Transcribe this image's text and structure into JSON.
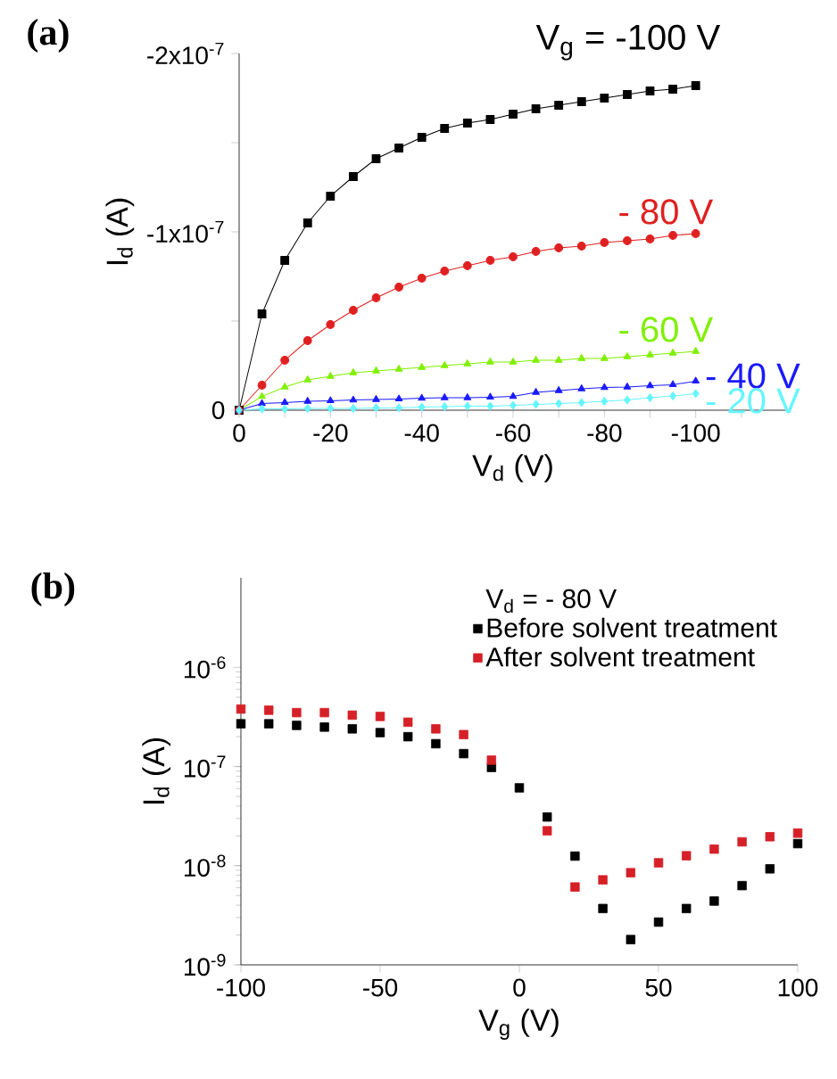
{
  "chart_data": [
    {
      "type": "line",
      "xlabel": "V$_{d}$ (V)",
      "ylabel": "I$_{d}$ (A)",
      "annotations": [
        "(a)"
      ],
      "x": [
        0,
        -5,
        -10,
        -15,
        -20,
        -25,
        -30,
        -35,
        -40,
        -45,
        -50,
        -55,
        -60,
        -65,
        -70,
        -75,
        -80,
        -85,
        -90,
        -95,
        -100
      ],
      "xlim": [
        0,
        -120
      ],
      "ylim": [
        0,
        -2e-07
      ],
      "xticks": [
        0,
        {
          "value": -10,
          "label": null
        },
        -20,
        {
          "value": -30,
          "label": null
        },
        -40,
        {
          "value": -50,
          "label": null
        },
        -60,
        {
          "value": -70,
          "label": null
        },
        -80,
        {
          "value": -90,
          "label": null
        },
        -100,
        {
          "value": -110,
          "label": null
        }
      ],
      "yticks": [
        0,
        {
          "value": -5e-08,
          "label": null
        },
        {
          "value": -1e-07,
          "label": "-1x10$^{-7}$"
        },
        {
          "value": -1.5e-07,
          "label": null
        },
        {
          "value": -2e-07,
          "label": "-2x10$^{-7}$"
        }
      ],
      "line_style": "solid",
      "series": [
        {
          "name": "V$_{g}$ = -100 V",
          "color": "#000000",
          "marker": "square",
          "values": [
            0,
            -5.4e-08,
            -8.4e-08,
            -1.05e-07,
            -1.2e-07,
            -1.31e-07,
            -1.41e-07,
            -1.47e-07,
            -1.53e-07,
            -1.58e-07,
            -1.61e-07,
            -1.63e-07,
            -1.66e-07,
            -1.69e-07,
            -1.71e-07,
            -1.73e-07,
            -1.75e-07,
            -1.77e-07,
            -1.79e-07,
            -1.8e-07,
            -1.82e-07
          ]
        },
        {
          "name": "- 80 V",
          "color": "#e02020",
          "marker": "circle",
          "values": [
            0,
            -1.4e-08,
            -2.8e-08,
            -3.9e-08,
            -4.8e-08,
            -5.6e-08,
            -6.3e-08,
            -6.9e-08,
            -7.4e-08,
            -7.8e-08,
            -8.1e-08,
            -8.4e-08,
            -8.6e-08,
            -8.9e-08,
            -9.1e-08,
            -9.2e-08,
            -9.4e-08,
            -9.5e-08,
            -9.6e-08,
            -9.8e-08,
            -9.9e-08
          ]
        },
        {
          "name": "- 60 V",
          "color": "#80f000",
          "marker": "triangle",
          "values": [
            0,
            -7.7e-09,
            -1.3e-08,
            -1.7e-08,
            -1.9e-08,
            -2.1e-08,
            -2.2e-08,
            -2.3e-08,
            -2.4e-08,
            -2.5e-08,
            -2.6e-08,
            -2.7e-08,
            -2.7e-08,
            -2.8e-08,
            -2.8e-08,
            -2.9e-08,
            -2.9e-08,
            -3e-08,
            -3.1e-08,
            -3.2e-08,
            -3.3e-08
          ]
        },
        {
          "name": "- 40 V",
          "color": "#1a1aff",
          "marker": "triangle",
          "values": [
            0,
            -3.7e-09,
            -4.3e-09,
            -5e-09,
            -5.3e-09,
            -5.7e-09,
            -6e-09,
            -6.3e-09,
            -6.7e-09,
            -7e-09,
            -7e-09,
            -7.3e-09,
            -7.7e-09,
            -1e-08,
            -1.1e-08,
            -1.2e-08,
            -1.27e-08,
            -1.3e-08,
            -1.37e-08,
            -1.43e-08,
            -1.63e-08
          ]
        },
        {
          "name": "- 20 V",
          "color": "#66f5ff",
          "marker": "diamond",
          "values": [
            0,
            -7e-10,
            -7e-10,
            -1e-09,
            -1e-09,
            -1e-09,
            -1.3e-09,
            -1.3e-09,
            -1.7e-09,
            -2e-09,
            -2.3e-09,
            -2.3e-09,
            -2.7e-09,
            -3.3e-09,
            -3.7e-09,
            -4.3e-09,
            -5e-09,
            -5.7e-09,
            -7e-09,
            -8e-09,
            -9.3e-09
          ]
        }
      ]
    },
    {
      "type": "scatter",
      "xlabel": "V$_{g}$ (V)",
      "ylabel": "I$_{d}$ (A)",
      "annotations": [
        "(b)"
      ],
      "legend_title": "V$_{d}$ = - 80 V",
      "x": [
        -100,
        -90,
        -80,
        -70,
        -60,
        -50,
        -40,
        -30,
        -20,
        -10,
        0,
        10,
        20,
        30,
        40,
        50,
        60,
        70,
        80,
        90,
        100
      ],
      "xlim": [
        -100,
        100
      ],
      "ylim": [
        1e-09,
        8e-06
      ],
      "log": "y",
      "marker": "square",
      "legend": "top right",
      "xticks": [
        -100,
        -50,
        0,
        50,
        100
      ],
      "yticks": [
        {
          "value": 1e-09,
          "label": "10$^{-9}$"
        },
        {
          "value": 1e-08,
          "label": "10$^{-8}$"
        },
        {
          "value": 1e-07,
          "label": "10$^{-7}$"
        },
        {
          "value": 1e-06,
          "label": "10$^{-6}$"
        }
      ],
      "series": [
        {
          "name": "Before solvent treatment",
          "color": "#000000",
          "values": [
            2.7e-07,
            2.7e-07,
            2.6e-07,
            2.5e-07,
            2.4e-07,
            2.2e-07,
            2e-07,
            1.7e-07,
            1.35e-07,
            9.8e-08,
            6.1e-08,
            3.1e-08,
            1.25e-08,
            3.7e-09,
            1.8e-09,
            2.7e-09,
            3.7e-09,
            4.4e-09,
            6.3e-09,
            9.3e-09,
            1.67e-08
          ]
        },
        {
          "name": "After solvent treatment",
          "color": "#d62027",
          "values": [
            3.8e-07,
            3.7e-07,
            3.5e-07,
            3.5e-07,
            3.3e-07,
            3.2e-07,
            2.8e-07,
            2.4e-07,
            2.1e-07,
            1.16e-07,
            null,
            2.25e-08,
            6.1e-09,
            7.2e-09,
            8.5e-09,
            1.07e-08,
            1.26e-08,
            1.47e-08,
            1.74e-08,
            1.96e-08,
            2.13e-08
          ]
        }
      ]
    }
  ]
}
